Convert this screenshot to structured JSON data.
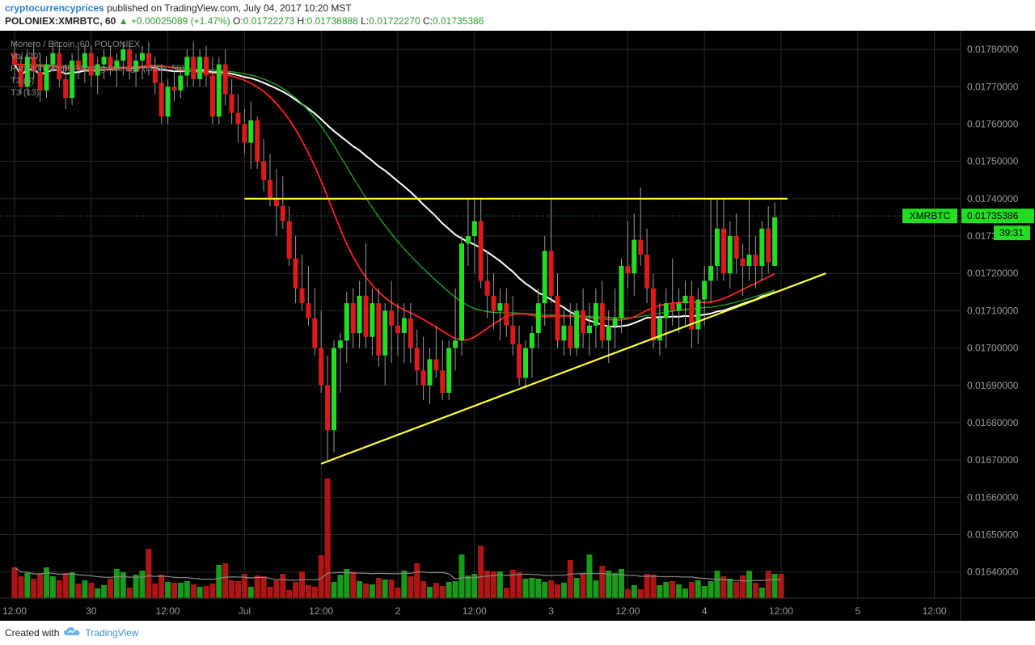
{
  "header": {
    "author": "cryptocurrencyprices",
    "published_text": "published on TradingView.com, July 04, 2017 10:20 MST",
    "symbol": "POLONIEX:XMRBTC, 60",
    "change": "▲ +0.00025089 (+1.47%)",
    "open_label": "O:",
    "open": "0.01722273",
    "high_label": "H:",
    "high": "0.01738888",
    "low_label": "L:",
    "low": "0.01722270",
    "close_label": "C:",
    "close": "0.01735386"
  },
  "legend": [
    "Monero / Bitcoin, 60, POLONIEX",
    "Vol (20)",
    "Function Simple Moving Average (close, 50)",
    "T3 (8)",
    "T3 (13)"
  ],
  "footer": {
    "created_with": "Created with",
    "brand": "TradingView",
    "logo_icon": "tradingview-cloud-icon"
  },
  "colors": {
    "background": "#000000",
    "grid": "#2a2a2a",
    "axis_text": "#9a9a9a",
    "up": "#22dd22",
    "down": "#dd1a1a",
    "vol_up": "#1a9a1a",
    "vol_down": "#b01515",
    "sma": "#ffffff",
    "t3_8": "#ff2020",
    "t3_13": "#22aa22",
    "trendline": "#ffff33",
    "price_label_bg": "#22dd22"
  },
  "chart_data": {
    "type": "candlestick",
    "symbol_tag": "XMRBTC",
    "last_price": "0.01735386",
    "countdown": "39:31",
    "y_ticks": [
      "0.01780000",
      "0.01770000",
      "0.01760000",
      "0.01750000",
      "0.01740000",
      "0.01730000",
      "0.01720000",
      "0.01710000",
      "0.01700000",
      "0.01690000",
      "0.01680000",
      "0.01670000",
      "0.01660000",
      "0.01650000",
      "0.01640000"
    ],
    "y_tick_values": [
      0.0178,
      0.0177,
      0.0176,
      0.0175,
      0.0174,
      0.0173,
      0.0172,
      0.0171,
      0.017,
      0.0169,
      0.0168,
      0.0167,
      0.0166,
      0.0165,
      0.0164
    ],
    "ylim": [
      0.01633,
      0.01785
    ],
    "x_ticks": [
      "12:00",
      "30",
      "12:00",
      "Jul",
      "12:00",
      "2",
      "12:00",
      "3",
      "12:00",
      "4",
      "12:00",
      "5",
      "12:00"
    ],
    "x_tick_index": [
      0,
      12,
      24,
      36,
      48,
      60,
      72,
      84,
      96,
      108,
      120,
      132,
      144
    ],
    "num_bars": 121,
    "ohlc": [
      [
        0.01779,
        0.01782,
        0.01772,
        0.01776
      ],
      [
        0.01776,
        0.01778,
        0.01768,
        0.0177
      ],
      [
        0.0177,
        0.0178,
        0.01768,
        0.01778
      ],
      [
        0.01778,
        0.01782,
        0.01772,
        0.01774
      ],
      [
        0.01774,
        0.01779,
        0.01766,
        0.01769
      ],
      [
        0.01769,
        0.01778,
        0.01767,
        0.01776
      ],
      [
        0.01776,
        0.01782,
        0.01774,
        0.01779
      ],
      [
        0.01779,
        0.01782,
        0.0177,
        0.01772
      ],
      [
        0.01772,
        0.01776,
        0.01764,
        0.01767
      ],
      [
        0.01767,
        0.01779,
        0.01765,
        0.01777
      ],
      [
        0.01777,
        0.01782,
        0.01772,
        0.01775
      ],
      [
        0.01775,
        0.01781,
        0.01771,
        0.01779
      ],
      [
        0.01779,
        0.01781,
        0.0177,
        0.01773
      ],
      [
        0.01773,
        0.01778,
        0.01768,
        0.01776
      ],
      [
        0.01776,
        0.0178,
        0.01772,
        0.01778
      ],
      [
        0.01778,
        0.01781,
        0.01773,
        0.01775
      ],
      [
        0.01775,
        0.01779,
        0.0177,
        0.01777
      ],
      [
        0.01777,
        0.01782,
        0.01773,
        0.0178
      ],
      [
        0.0178,
        0.01782,
        0.01772,
        0.01774
      ],
      [
        0.01774,
        0.01779,
        0.0177,
        0.01777
      ],
      [
        0.01777,
        0.01781,
        0.01772,
        0.01779
      ],
      [
        0.01779,
        0.01782,
        0.01773,
        0.01775
      ],
      [
        0.01775,
        0.01778,
        0.01768,
        0.01771
      ],
      [
        0.01771,
        0.01776,
        0.0176,
        0.01762
      ],
      [
        0.01762,
        0.01772,
        0.0176,
        0.0177
      ],
      [
        0.0177,
        0.01774,
        0.01766,
        0.01769
      ],
      [
        0.01769,
        0.01775,
        0.01767,
        0.01773
      ],
      [
        0.01773,
        0.0178,
        0.0177,
        0.01778
      ],
      [
        0.01778,
        0.01782,
        0.0177,
        0.01772
      ],
      [
        0.01772,
        0.0178,
        0.0177,
        0.01778
      ],
      [
        0.01778,
        0.01781,
        0.0177,
        0.01773
      ],
      [
        0.01773,
        0.01778,
        0.0176,
        0.01762
      ],
      [
        0.01762,
        0.01778,
        0.0176,
        0.01776
      ],
      [
        0.01776,
        0.0178,
        0.01765,
        0.01768
      ],
      [
        0.01768,
        0.01772,
        0.0176,
        0.01763
      ],
      [
        0.01763,
        0.01768,
        0.01755,
        0.0176
      ],
      [
        0.0176,
        0.01764,
        0.01752,
        0.01755
      ],
      [
        0.01755,
        0.01766,
        0.01748,
        0.01761
      ],
      [
        0.01761,
        0.01762,
        0.01748,
        0.0175
      ],
      [
        0.0175,
        0.01756,
        0.01742,
        0.01745
      ],
      [
        0.01745,
        0.01752,
        0.01738,
        0.0174
      ],
      [
        0.0174,
        0.01748,
        0.0173,
        0.01738
      ],
      [
        0.01738,
        0.01746,
        0.01732,
        0.01734
      ],
      [
        0.01734,
        0.01738,
        0.01722,
        0.01724
      ],
      [
        0.01724,
        0.0173,
        0.01712,
        0.01716
      ],
      [
        0.01716,
        0.01725,
        0.0171,
        0.01712
      ],
      [
        0.01712,
        0.01722,
        0.01706,
        0.01708
      ],
      [
        0.01708,
        0.01716,
        0.01698,
        0.017
      ],
      [
        0.017,
        0.0171,
        0.01688,
        0.0169
      ],
      [
        0.0169,
        0.01698,
        0.0167,
        0.01678
      ],
      [
        0.01678,
        0.01702,
        0.01672,
        0.017
      ],
      [
        0.017,
        0.01704,
        0.01688,
        0.01702
      ],
      [
        0.01702,
        0.01715,
        0.01696,
        0.01712
      ],
      [
        0.01712,
        0.01716,
        0.017,
        0.01704
      ],
      [
        0.01704,
        0.01718,
        0.017,
        0.01714
      ],
      [
        0.01714,
        0.01728,
        0.017,
        0.01703
      ],
      [
        0.01703,
        0.01716,
        0.01698,
        0.01712
      ],
      [
        0.01712,
        0.01716,
        0.01695,
        0.01698
      ],
      [
        0.01698,
        0.01712,
        0.0169,
        0.0171
      ],
      [
        0.0171,
        0.01718,
        0.01696,
        0.01706
      ],
      [
        0.01706,
        0.01712,
        0.01698,
        0.01704
      ],
      [
        0.01704,
        0.01712,
        0.01696,
        0.01708
      ],
      [
        0.01708,
        0.01712,
        0.01696,
        0.017
      ],
      [
        0.017,
        0.01705,
        0.0169,
        0.01694
      ],
      [
        0.01694,
        0.01703,
        0.01686,
        0.0169
      ],
      [
        0.0169,
        0.017,
        0.01685,
        0.01697
      ],
      [
        0.01697,
        0.01706,
        0.01692,
        0.01694
      ],
      [
        0.01694,
        0.01702,
        0.01686,
        0.01688
      ],
      [
        0.01688,
        0.01702,
        0.01686,
        0.017
      ],
      [
        0.017,
        0.01716,
        0.01694,
        0.01702
      ],
      [
        0.01702,
        0.0173,
        0.01698,
        0.01728
      ],
      [
        0.01728,
        0.0174,
        0.01722,
        0.0173
      ],
      [
        0.0173,
        0.0174,
        0.0172,
        0.01734
      ],
      [
        0.01734,
        0.0174,
        0.01716,
        0.01718
      ],
      [
        0.01718,
        0.01726,
        0.01708,
        0.01714
      ],
      [
        0.01714,
        0.0172,
        0.01705,
        0.0171
      ],
      [
        0.0171,
        0.01716,
        0.01702,
        0.01712
      ],
      [
        0.01712,
        0.01716,
        0.01703,
        0.01706
      ],
      [
        0.01706,
        0.01714,
        0.01698,
        0.01701
      ],
      [
        0.01701,
        0.01706,
        0.0169,
        0.01692
      ],
      [
        0.01692,
        0.01702,
        0.01689,
        0.017
      ],
      [
        0.017,
        0.01706,
        0.01692,
        0.01704
      ],
      [
        0.01704,
        0.01716,
        0.017,
        0.01712
      ],
      [
        0.01712,
        0.0173,
        0.01706,
        0.01726
      ],
      [
        0.01726,
        0.0174,
        0.01712,
        0.01714
      ],
      [
        0.01714,
        0.0172,
        0.017,
        0.01702
      ],
      [
        0.01702,
        0.0171,
        0.01698,
        0.01706
      ],
      [
        0.01706,
        0.01712,
        0.01698,
        0.017
      ],
      [
        0.017,
        0.01712,
        0.01698,
        0.0171
      ],
      [
        0.0171,
        0.01716,
        0.017,
        0.01704
      ],
      [
        0.01704,
        0.01712,
        0.01698,
        0.01706
      ],
      [
        0.01706,
        0.01716,
        0.017,
        0.01712
      ],
      [
        0.01712,
        0.01718,
        0.017,
        0.01702
      ],
      [
        0.01702,
        0.0171,
        0.01696,
        0.01706
      ],
      [
        0.01706,
        0.01716,
        0.017,
        0.01708
      ],
      [
        0.01708,
        0.01724,
        0.01704,
        0.01722
      ],
      [
        0.01722,
        0.01734,
        0.01716,
        0.0172
      ],
      [
        0.0172,
        0.01736,
        0.01714,
        0.01729
      ],
      [
        0.01729,
        0.01743,
        0.01722,
        0.01725
      ],
      [
        0.01725,
        0.01732,
        0.01712,
        0.01716
      ],
      [
        0.01716,
        0.0172,
        0.017,
        0.01702
      ],
      [
        0.01702,
        0.01712,
        0.01698,
        0.01708
      ],
      [
        0.01708,
        0.01716,
        0.017,
        0.01712
      ],
      [
        0.01712,
        0.01724,
        0.01706,
        0.0171
      ],
      [
        0.0171,
        0.01716,
        0.01704,
        0.01712
      ],
      [
        0.01712,
        0.01718,
        0.01706,
        0.01714
      ],
      [
        0.01714,
        0.01718,
        0.017,
        0.01705
      ],
      [
        0.01705,
        0.01716,
        0.01701,
        0.01713
      ],
      [
        0.01713,
        0.01722,
        0.01706,
        0.01718
      ],
      [
        0.01718,
        0.0174,
        0.01712,
        0.01722
      ],
      [
        0.01722,
        0.0174,
        0.01718,
        0.01732
      ],
      [
        0.01732,
        0.0174,
        0.01718,
        0.0172
      ],
      [
        0.0172,
        0.01734,
        0.01716,
        0.0173
      ],
      [
        0.0173,
        0.01736,
        0.0172,
        0.01724
      ],
      [
        0.01724,
        0.01728,
        0.01714,
        0.01722
      ],
      [
        0.01722,
        0.0174,
        0.01718,
        0.01725
      ],
      [
        0.01725,
        0.0173,
        0.01716,
        0.01722
      ],
      [
        0.01722,
        0.01734,
        0.01718,
        0.01732
      ],
      [
        0.01732,
        0.01738,
        0.0172,
        0.01723
      ],
      [
        0.01722,
        0.01739,
        0.01722,
        0.01735
      ]
    ],
    "volume": [
      38,
      27,
      31,
      24,
      30,
      38,
      27,
      22,
      31,
      32,
      18,
      22,
      19,
      12,
      16,
      24,
      36,
      32,
      13,
      29,
      34,
      61,
      18,
      29,
      20,
      19,
      19,
      21,
      17,
      14,
      15,
      18,
      41,
      43,
      22,
      21,
      30,
      14,
      28,
      27,
      14,
      22,
      30,
      10,
      20,
      33,
      16,
      14,
      53,
      148,
      20,
      29,
      36,
      33,
      21,
      18,
      17,
      25,
      23,
      23,
      13,
      34,
      27,
      43,
      21,
      14,
      19,
      15,
      20,
      21,
      54,
      28,
      30,
      65,
      34,
      33,
      33,
      13,
      35,
      32,
      24,
      25,
      24,
      20,
      22,
      17,
      19,
      47,
      25,
      30,
      54,
      22,
      40,
      34,
      31,
      36,
      11,
      16,
      11,
      30,
      29,
      16,
      20,
      21,
      17,
      12,
      20,
      22,
      15,
      21,
      34,
      27,
      24,
      20,
      28,
      34,
      19,
      13,
      34,
      30,
      30
    ],
    "series": [
      {
        "name": "Function Simple Moving Average (close, 50)",
        "type": "line"
      },
      {
        "name": "T3 (8)",
        "type": "line"
      },
      {
        "name": "T3 (13)",
        "type": "line"
      }
    ],
    "trendlines": [
      {
        "name": "resistance",
        "from_bar": 36,
        "from_price": 0.0174,
        "to_bar": 121,
        "to_price": 0.0174
      },
      {
        "name": "support",
        "from_bar": 48,
        "from_price": 0.01669,
        "to_bar": 127,
        "to_price": 0.0172
      }
    ]
  }
}
